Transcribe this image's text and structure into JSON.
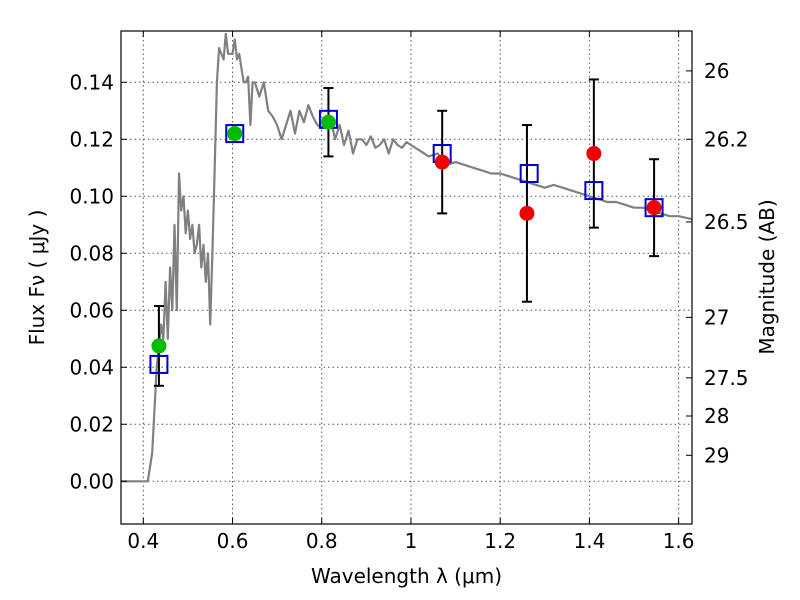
{
  "chart_data": {
    "type": "scatter",
    "title": "",
    "xlabel": "Wavelength  λ (μm)",
    "ylabel": "Flux  Fν  ( μJy )",
    "y2label": "Magnitude (AB)",
    "xlim": [
      0.35,
      1.63
    ],
    "ylim": [
      -0.015,
      0.158
    ],
    "grid": true,
    "x_ticks": [
      0.4,
      0.6,
      0.8,
      1.0,
      1.2,
      1.4,
      1.6
    ],
    "x_tick_labels": [
      "0.4",
      "0.6",
      "0.8",
      "1",
      "1.2",
      "1.4",
      "1.6"
    ],
    "y_ticks": [
      0.0,
      0.02,
      0.04,
      0.06,
      0.08,
      0.1,
      0.12,
      0.14
    ],
    "y_tick_labels": [
      "0.00",
      "0.02",
      "0.04",
      "0.06",
      "0.08",
      "0.10",
      "0.12",
      "0.14"
    ],
    "y2_ticks": [
      {
        "label": "26",
        "flux": 0.144
      },
      {
        "label": "26.2",
        "flux": 0.12
      },
      {
        "label": "26.5",
        "flux": 0.091
      },
      {
        "label": "27",
        "flux": 0.0575
      },
      {
        "label": "27.5",
        "flux": 0.0363
      },
      {
        "label": "28",
        "flux": 0.0229
      },
      {
        "label": "29",
        "flux": 0.0091
      }
    ],
    "series": [
      {
        "kind": "line",
        "color": "#808080",
        "x": [
          0.35,
          0.41,
          0.42,
          0.43,
          0.44,
          0.445,
          0.45,
          0.455,
          0.46,
          0.465,
          0.47,
          0.475,
          0.48,
          0.485,
          0.49,
          0.495,
          0.5,
          0.505,
          0.51,
          0.515,
          0.52,
          0.525,
          0.53,
          0.535,
          0.54,
          0.545,
          0.55,
          0.555,
          0.56,
          0.565,
          0.57,
          0.58,
          0.585,
          0.59,
          0.6,
          0.605,
          0.61,
          0.615,
          0.62,
          0.625,
          0.63,
          0.635,
          0.64,
          0.645,
          0.65,
          0.66,
          0.67,
          0.68,
          0.69,
          0.7,
          0.71,
          0.72,
          0.73,
          0.74,
          0.75,
          0.76,
          0.77,
          0.78,
          0.79,
          0.8,
          0.81,
          0.82,
          0.83,
          0.84,
          0.85,
          0.86,
          0.87,
          0.88,
          0.89,
          0.9,
          0.91,
          0.92,
          0.93,
          0.94,
          0.95,
          0.96,
          0.97,
          0.98,
          0.99,
          1.0,
          1.02,
          1.04,
          1.06,
          1.08,
          1.1,
          1.12,
          1.14,
          1.16,
          1.18,
          1.2,
          1.22,
          1.24,
          1.26,
          1.28,
          1.3,
          1.32,
          1.34,
          1.36,
          1.38,
          1.4,
          1.42,
          1.44,
          1.46,
          1.48,
          1.5,
          1.52,
          1.54,
          1.56,
          1.58,
          1.6,
          1.63
        ],
        "y": [
          0.0,
          0.0,
          0.01,
          0.04,
          0.055,
          0.05,
          0.07,
          0.05,
          0.075,
          0.06,
          0.09,
          0.06,
          0.108,
          0.095,
          0.1,
          0.087,
          0.095,
          0.085,
          0.09,
          0.08,
          0.083,
          0.09,
          0.075,
          0.083,
          0.07,
          0.08,
          0.055,
          0.08,
          0.11,
          0.14,
          0.152,
          0.148,
          0.157,
          0.15,
          0.15,
          0.155,
          0.148,
          0.15,
          0.145,
          0.14,
          0.14,
          0.142,
          0.125,
          0.14,
          0.14,
          0.135,
          0.14,
          0.13,
          0.128,
          0.125,
          0.12,
          0.125,
          0.13,
          0.122,
          0.13,
          0.126,
          0.132,
          0.128,
          0.125,
          0.124,
          0.126,
          0.127,
          0.12,
          0.125,
          0.118,
          0.123,
          0.115,
          0.12,
          0.12,
          0.118,
          0.121,
          0.117,
          0.118,
          0.12,
          0.115,
          0.12,
          0.118,
          0.117,
          0.119,
          0.118,
          0.116,
          0.114,
          0.115,
          0.111,
          0.112,
          0.111,
          0.11,
          0.109,
          0.108,
          0.108,
          0.107,
          0.106,
          0.105,
          0.104,
          0.103,
          0.104,
          0.103,
          0.102,
          0.101,
          0.1,
          0.099,
          0.098,
          0.098,
          0.097,
          0.096,
          0.096,
          0.095,
          0.094,
          0.093,
          0.093,
          0.092
        ]
      },
      {
        "kind": "model_points",
        "marker": "open-square",
        "color": "#0000cc",
        "x": [
          0.435,
          0.605,
          0.815,
          1.07,
          1.265,
          1.41,
          1.545
        ],
        "y": [
          0.041,
          0.122,
          0.127,
          0.115,
          0.108,
          0.102,
          0.096
        ]
      },
      {
        "kind": "detections",
        "marker": "filled-circle",
        "color": "#00bb00",
        "x": [
          0.435,
          0.605,
          0.815
        ],
        "y": [
          0.0475,
          0.122,
          0.126
        ],
        "yerr": [
          0.014,
          0.0,
          0.012
        ]
      },
      {
        "kind": "detections",
        "marker": "filled-circle",
        "color": "#ee0000",
        "x": [
          1.07,
          1.26,
          1.41,
          1.545
        ],
        "y": [
          0.112,
          0.094,
          0.115,
          0.096
        ],
        "yerr": [
          0.018,
          0.031,
          0.026,
          0.017
        ]
      }
    ]
  }
}
